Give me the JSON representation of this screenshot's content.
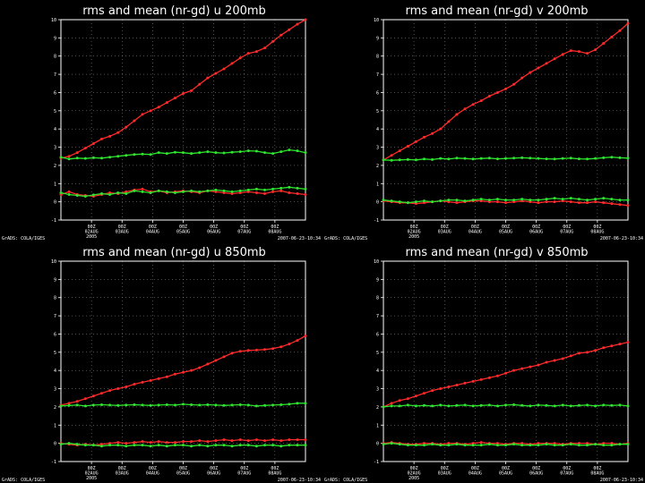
{
  "chart_data": [
    {
      "type": "line",
      "title": "rms and mean (nr-gd) u 200mb",
      "footer_left": "GrADS: COLA/IGES",
      "footer_right": "2007-06-23-10:34",
      "ylim": [
        -1,
        10
      ],
      "yticks": [
        -1,
        0,
        1,
        2,
        3,
        4,
        5,
        6,
        7,
        8,
        9,
        10
      ],
      "x_day_start": 1,
      "x_day_end": 9,
      "x_tick_days": [
        2,
        3,
        4,
        5,
        6,
        7,
        8
      ],
      "x_tick_labels": [
        [
          "00Z",
          "02AUG",
          "2005"
        ],
        [
          "00Z",
          "03AUG"
        ],
        [
          "00Z",
          "04AUG"
        ],
        [
          "00Z",
          "05AUG"
        ],
        [
          "00Z",
          "06AUG"
        ],
        [
          "00Z",
          "07AUG"
        ],
        [
          "00Z",
          "08AUG"
        ]
      ],
      "grid": true,
      "series": [
        {
          "role": "rms",
          "color": "#ff2a2a",
          "values": [
            2.4,
            2.5,
            2.7,
            2.95,
            3.2,
            3.45,
            3.6,
            3.8,
            4.1,
            4.45,
            4.8,
            5.0,
            5.2,
            5.45,
            5.7,
            5.95,
            6.1,
            6.45,
            6.8,
            7.05,
            7.3,
            7.6,
            7.9,
            8.15,
            8.25,
            8.45,
            8.8,
            9.15,
            9.45,
            9.75,
            10.0
          ]
        },
        {
          "role": "rms",
          "color": "#2ee62e",
          "values": [
            2.45,
            2.35,
            2.4,
            2.38,
            2.42,
            2.4,
            2.45,
            2.5,
            2.55,
            2.6,
            2.62,
            2.6,
            2.7,
            2.65,
            2.72,
            2.7,
            2.65,
            2.7,
            2.75,
            2.7,
            2.68,
            2.72,
            2.75,
            2.8,
            2.78,
            2.7,
            2.65,
            2.75,
            2.85,
            2.8,
            2.7
          ]
        },
        {
          "role": "mean",
          "color": "#ff2a2a",
          "values": [
            0.4,
            0.55,
            0.4,
            0.35,
            0.3,
            0.4,
            0.5,
            0.45,
            0.55,
            0.65,
            0.7,
            0.55,
            0.6,
            0.5,
            0.55,
            0.6,
            0.55,
            0.5,
            0.6,
            0.55,
            0.5,
            0.45,
            0.5,
            0.55,
            0.5,
            0.45,
            0.55,
            0.6,
            0.5,
            0.45,
            0.4
          ]
        },
        {
          "role": "mean",
          "color": "#2ee62e",
          "values": [
            0.5,
            0.4,
            0.35,
            0.3,
            0.38,
            0.45,
            0.4,
            0.5,
            0.45,
            0.6,
            0.55,
            0.5,
            0.6,
            0.55,
            0.5,
            0.55,
            0.6,
            0.55,
            0.6,
            0.65,
            0.6,
            0.55,
            0.6,
            0.65,
            0.7,
            0.65,
            0.7,
            0.75,
            0.8,
            0.75,
            0.7
          ]
        }
      ]
    },
    {
      "type": "line",
      "title": "rms and mean (nr-gd) v 200mb",
      "footer_left": "GrADS: COLA/IGES",
      "footer_right": "2007-06-23-10:34",
      "ylim": [
        -1,
        10
      ],
      "yticks": [
        -1,
        0,
        1,
        2,
        3,
        4,
        5,
        6,
        7,
        8,
        9,
        10
      ],
      "x_day_start": 1,
      "x_day_end": 9,
      "x_tick_days": [
        2,
        3,
        4,
        5,
        6,
        7,
        8
      ],
      "x_tick_labels": [
        [
          "00Z",
          "02AUG",
          "2005"
        ],
        [
          "00Z",
          "03AUG"
        ],
        [
          "00Z",
          "04AUG"
        ],
        [
          "00Z",
          "05AUG"
        ],
        [
          "00Z",
          "06AUG"
        ],
        [
          "00Z",
          "07AUG"
        ],
        [
          "00Z",
          "08AUG"
        ]
      ],
      "grid": true,
      "series": [
        {
          "role": "rms",
          "color": "#ff2a2a",
          "values": [
            2.3,
            2.55,
            2.8,
            3.05,
            3.3,
            3.55,
            3.75,
            4.0,
            4.4,
            4.8,
            5.1,
            5.35,
            5.55,
            5.8,
            6.0,
            6.2,
            6.45,
            6.8,
            7.1,
            7.35,
            7.6,
            7.85,
            8.1,
            8.3,
            8.25,
            8.15,
            8.35,
            8.7,
            9.05,
            9.4,
            9.8
          ]
        },
        {
          "role": "rms",
          "color": "#2ee62e",
          "values": [
            2.3,
            2.28,
            2.3,
            2.32,
            2.3,
            2.35,
            2.32,
            2.38,
            2.35,
            2.4,
            2.38,
            2.35,
            2.38,
            2.4,
            2.36,
            2.38,
            2.4,
            2.42,
            2.4,
            2.38,
            2.36,
            2.35,
            2.38,
            2.4,
            2.36,
            2.35,
            2.38,
            2.42,
            2.45,
            2.42,
            2.4
          ]
        },
        {
          "role": "mean",
          "color": "#ff2a2a",
          "values": [
            0.05,
            0.0,
            -0.05,
            -0.05,
            -0.1,
            -0.05,
            0.0,
            0.05,
            0.0,
            -0.05,
            0.0,
            0.05,
            0.05,
            0.0,
            0.0,
            -0.05,
            0.0,
            0.05,
            0.0,
            -0.05,
            0.0,
            0.0,
            0.05,
            0.0,
            -0.05,
            -0.05,
            0.0,
            -0.05,
            -0.1,
            -0.15,
            -0.2
          ]
        },
        {
          "role": "mean",
          "color": "#2ee62e",
          "values": [
            0.1,
            0.05,
            0.0,
            -0.05,
            0.0,
            0.05,
            0.0,
            0.05,
            0.1,
            0.1,
            0.05,
            0.1,
            0.15,
            0.1,
            0.15,
            0.1,
            0.1,
            0.15,
            0.1,
            0.1,
            0.15,
            0.2,
            0.15,
            0.2,
            0.15,
            0.1,
            0.15,
            0.2,
            0.15,
            0.1,
            0.1
          ]
        }
      ]
    },
    {
      "type": "line",
      "title": "rms and mean (nr-gd) u 850mb",
      "footer_left": "GrADS: COLA/IGES",
      "footer_right": "2007-06-23-10:34",
      "ylim": [
        -1,
        10
      ],
      "yticks": [
        -1,
        0,
        1,
        2,
        3,
        4,
        5,
        6,
        7,
        8,
        9,
        10
      ],
      "x_day_start": 1,
      "x_day_end": 9,
      "x_tick_days": [
        2,
        3,
        4,
        5,
        6,
        7,
        8
      ],
      "x_tick_labels": [
        [
          "00Z",
          "02AUG",
          "2005"
        ],
        [
          "00Z",
          "03AUG"
        ],
        [
          "00Z",
          "04AUG"
        ],
        [
          "00Z",
          "05AUG"
        ],
        [
          "00Z",
          "06AUG"
        ],
        [
          "00Z",
          "07AUG"
        ],
        [
          "00Z",
          "08AUG"
        ]
      ],
      "grid": true,
      "series": [
        {
          "role": "rms",
          "color": "#ff2a2a",
          "values": [
            2.1,
            2.2,
            2.3,
            2.45,
            2.6,
            2.75,
            2.9,
            3.0,
            3.1,
            3.25,
            3.35,
            3.45,
            3.55,
            3.65,
            3.8,
            3.9,
            4.0,
            4.15,
            4.35,
            4.55,
            4.75,
            4.95,
            5.05,
            5.1,
            5.12,
            5.15,
            5.2,
            5.3,
            5.45,
            5.65,
            5.9
          ]
        },
        {
          "role": "rms",
          "color": "#2ee62e",
          "values": [
            2.05,
            2.08,
            2.1,
            2.05,
            2.1,
            2.12,
            2.1,
            2.08,
            2.1,
            2.12,
            2.1,
            2.08,
            2.1,
            2.12,
            2.1,
            2.15,
            2.12,
            2.1,
            2.12,
            2.1,
            2.08,
            2.1,
            2.12,
            2.1,
            2.05,
            2.08,
            2.1,
            2.12,
            2.15,
            2.2,
            2.2
          ]
        },
        {
          "role": "mean",
          "color": "#ff2a2a",
          "values": [
            0.0,
            -0.05,
            -0.1,
            -0.05,
            -0.1,
            -0.05,
            0.0,
            0.05,
            0.0,
            0.05,
            0.1,
            0.05,
            0.1,
            0.05,
            0.05,
            0.1,
            0.1,
            0.15,
            0.1,
            0.15,
            0.2,
            0.15,
            0.2,
            0.15,
            0.2,
            0.15,
            0.2,
            0.15,
            0.2,
            0.2,
            0.2
          ]
        },
        {
          "role": "mean",
          "color": "#2ee62e",
          "values": [
            -0.05,
            0.0,
            -0.05,
            -0.1,
            -0.1,
            -0.15,
            -0.1,
            -0.1,
            -0.15,
            -0.1,
            -0.1,
            -0.15,
            -0.1,
            -0.15,
            -0.1,
            -0.1,
            -0.15,
            -0.1,
            -0.15,
            -0.1,
            -0.1,
            -0.15,
            -0.1,
            -0.1,
            -0.15,
            -0.1,
            -0.1,
            -0.15,
            -0.1,
            -0.1,
            -0.1
          ]
        }
      ]
    },
    {
      "type": "line",
      "title": "rms and mean (nr-gd) v 850mb",
      "footer_left": "GrADS: COLA/IGES",
      "footer_right": "2007-06-23-10:34",
      "ylim": [
        -1,
        10
      ],
      "yticks": [
        -1,
        0,
        1,
        2,
        3,
        4,
        5,
        6,
        7,
        8,
        9,
        10
      ],
      "x_day_start": 1,
      "x_day_end": 9,
      "x_tick_days": [
        2,
        3,
        4,
        5,
        6,
        7,
        8
      ],
      "x_tick_labels": [
        [
          "00Z",
          "02AUG",
          "2005"
        ],
        [
          "00Z",
          "03AUG"
        ],
        [
          "00Z",
          "04AUG"
        ],
        [
          "00Z",
          "05AUG"
        ],
        [
          "00Z",
          "06AUG"
        ],
        [
          "00Z",
          "07AUG"
        ],
        [
          "00Z",
          "08AUG"
        ]
      ],
      "grid": true,
      "series": [
        {
          "role": "rms",
          "color": "#ff2a2a",
          "values": [
            2.0,
            2.2,
            2.35,
            2.45,
            2.6,
            2.75,
            2.9,
            3.0,
            3.1,
            3.2,
            3.3,
            3.4,
            3.5,
            3.6,
            3.7,
            3.85,
            4.0,
            4.1,
            4.2,
            4.3,
            4.45,
            4.55,
            4.65,
            4.8,
            4.95,
            5.0,
            5.1,
            5.25,
            5.35,
            5.45,
            5.55
          ]
        },
        {
          "role": "rms",
          "color": "#2ee62e",
          "values": [
            2.0,
            2.05,
            2.05,
            2.1,
            2.05,
            2.08,
            2.05,
            2.1,
            2.05,
            2.08,
            2.1,
            2.05,
            2.08,
            2.1,
            2.05,
            2.1,
            2.12,
            2.08,
            2.05,
            2.1,
            2.08,
            2.05,
            2.1,
            2.05,
            2.08,
            2.1,
            2.05,
            2.1,
            2.08,
            2.1,
            2.05
          ]
        },
        {
          "role": "mean",
          "color": "#ff2a2a",
          "values": [
            0.0,
            0.05,
            0.0,
            -0.05,
            -0.05,
            0.0,
            0.0,
            -0.05,
            0.0,
            0.0,
            -0.05,
            0.0,
            0.05,
            0.0,
            0.0,
            -0.05,
            0.0,
            0.0,
            -0.05,
            0.0,
            0.0,
            0.0,
            -0.05,
            0.0,
            0.0,
            0.0,
            -0.05,
            0.0,
            0.0,
            -0.05,
            0.0
          ]
        },
        {
          "role": "mean",
          "color": "#2ee62e",
          "values": [
            -0.05,
            0.0,
            -0.05,
            -0.1,
            -0.1,
            -0.1,
            -0.05,
            -0.1,
            -0.1,
            -0.05,
            -0.1,
            -0.1,
            -0.1,
            -0.05,
            -0.1,
            -0.1,
            -0.05,
            -0.1,
            -0.1,
            -0.1,
            -0.05,
            -0.1,
            -0.1,
            -0.05,
            -0.1,
            -0.1,
            -0.05,
            -0.1,
            -0.1,
            -0.05,
            -0.05
          ]
        }
      ]
    }
  ]
}
